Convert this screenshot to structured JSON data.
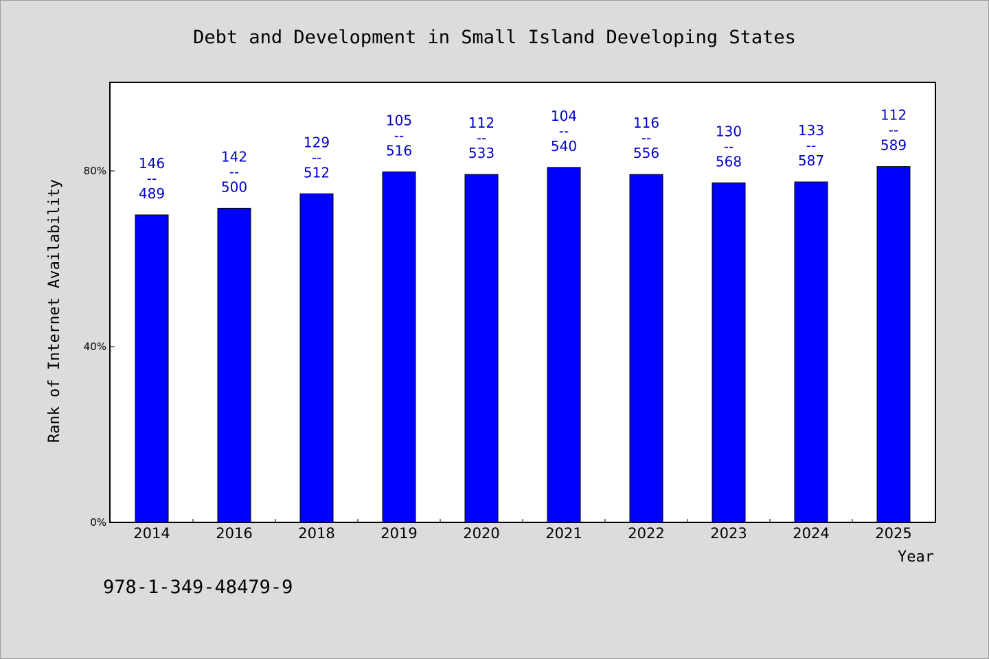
{
  "chart_data": {
    "type": "bar",
    "title": "Debt and Development in Small Island Developing States",
    "xlabel": "Year",
    "ylabel": "Rank of Internet Availability",
    "categories": [
      "2014",
      "2016",
      "2018",
      "2019",
      "2020",
      "2021",
      "2022",
      "2023",
      "2024",
      "2025"
    ],
    "series": [
      {
        "values": [
          70.0,
          71.5,
          74.8,
          79.8,
          79.2,
          80.8,
          79.2,
          77.3,
          77.5,
          81.0
        ],
        "bar_labels": [
          [
            "146",
            "--",
            "489"
          ],
          [
            "142",
            "--",
            "500"
          ],
          [
            "129",
            "--",
            "512"
          ],
          [
            "105",
            "--",
            "516"
          ],
          [
            "112",
            "--",
            "533"
          ],
          [
            "104",
            "--",
            "540"
          ],
          [
            "116",
            "--",
            "556"
          ],
          [
            "130",
            "--",
            "568"
          ],
          [
            "133",
            "--",
            "587"
          ],
          [
            "112",
            "--",
            "589"
          ]
        ]
      }
    ],
    "ylim": [
      0,
      100
    ],
    "yticks": [
      0,
      40,
      80
    ],
    "ytick_labels": [
      "0%",
      "40%",
      "80%"
    ],
    "grid": false,
    "bar_color": "#0000ff",
    "label_color": "#0000cc",
    "plot_background": "#ffffff",
    "figure_background": "#dcdcdc"
  },
  "footer": {
    "isbn": "978-1-349-48479-9"
  }
}
